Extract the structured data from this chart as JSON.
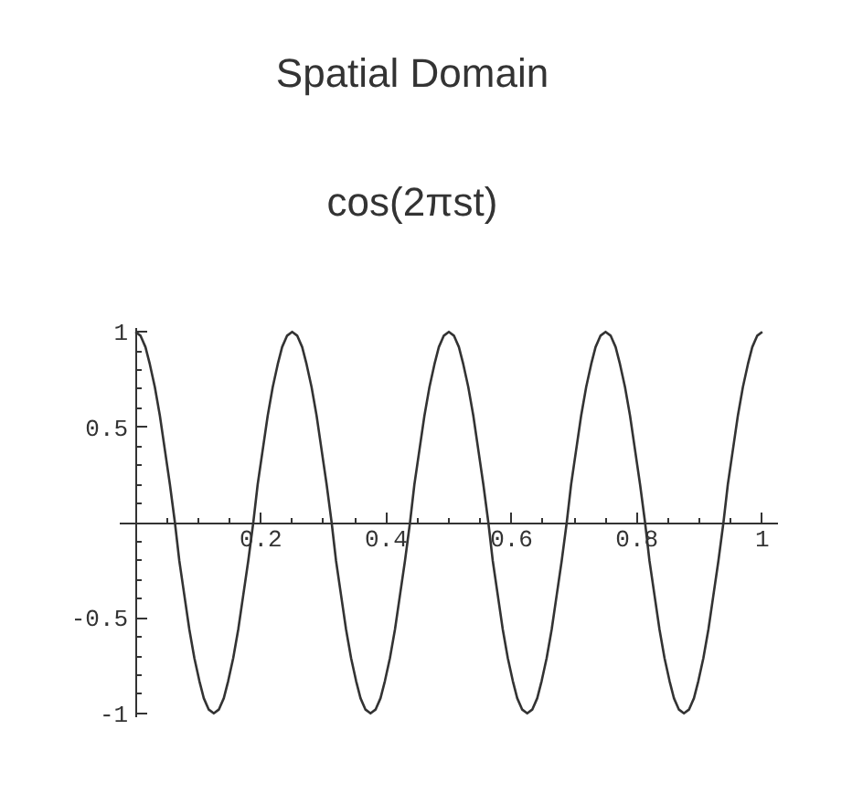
{
  "chart_data": {
    "type": "line",
    "title": "Spatial Domain",
    "subtitle": "cos(2πst)",
    "x": [
      0,
      0.008,
      0.016,
      0.023,
      0.031,
      0.039,
      0.047,
      0.055,
      0.063,
      0.07,
      0.078,
      0.086,
      0.094,
      0.102,
      0.109,
      0.117,
      0.125,
      0.133,
      0.141,
      0.148,
      0.156,
      0.164,
      0.172,
      0.18,
      0.188,
      0.195,
      0.203,
      0.211,
      0.219,
      0.227,
      0.234,
      0.242,
      0.25,
      0.258,
      0.266,
      0.273,
      0.281,
      0.289,
      0.297,
      0.305,
      0.313,
      0.32,
      0.328,
      0.336,
      0.344,
      0.352,
      0.359,
      0.367,
      0.375,
      0.383,
      0.391,
      0.398,
      0.406,
      0.414,
      0.422,
      0.43,
      0.438,
      0.445,
      0.453,
      0.461,
      0.469,
      0.477,
      0.484,
      0.492,
      0.5,
      0.508,
      0.516,
      0.523,
      0.531,
      0.539,
      0.547,
      0.555,
      0.563,
      0.57,
      0.578,
      0.586,
      0.594,
      0.602,
      0.609,
      0.617,
      0.625,
      0.633,
      0.641,
      0.648,
      0.656,
      0.664,
      0.672,
      0.68,
      0.688,
      0.695,
      0.703,
      0.711,
      0.719,
      0.727,
      0.734,
      0.742,
      0.75,
      0.758,
      0.766,
      0.773,
      0.781,
      0.789,
      0.797,
      0.805,
      0.813,
      0.82,
      0.828,
      0.836,
      0.844,
      0.852,
      0.859,
      0.867,
      0.875,
      0.883,
      0.891,
      0.898,
      0.906,
      0.914,
      0.922,
      0.93,
      0.938,
      0.945,
      0.953,
      0.961,
      0.969,
      0.977,
      0.984,
      0.992,
      1
    ],
    "series": [
      {
        "color": "#333333",
        "values": [
          1,
          0.98,
          0.92,
          0.83,
          0.71,
          0.56,
          0.38,
          0.2,
          0,
          -0.2,
          -0.38,
          -0.56,
          -0.71,
          -0.83,
          -0.92,
          -0.98,
          -1,
          -0.98,
          -0.92,
          -0.83,
          -0.71,
          -0.56,
          -0.38,
          -0.2,
          0,
          0.2,
          0.38,
          0.56,
          0.71,
          0.83,
          0.92,
          0.98,
          1,
          0.98,
          0.92,
          0.83,
          0.71,
          0.56,
          0.38,
          0.2,
          0,
          -0.2,
          -0.38,
          -0.56,
          -0.71,
          -0.83,
          -0.92,
          -0.98,
          -1,
          -0.98,
          -0.92,
          -0.83,
          -0.71,
          -0.56,
          -0.38,
          -0.2,
          0,
          0.2,
          0.38,
          0.56,
          0.71,
          0.83,
          0.92,
          0.98,
          1,
          0.98,
          0.92,
          0.83,
          0.71,
          0.56,
          0.38,
          0.2,
          0,
          -0.2,
          -0.38,
          -0.56,
          -0.71,
          -0.83,
          -0.92,
          -0.98,
          -1,
          -0.98,
          -0.92,
          -0.83,
          -0.71,
          -0.56,
          -0.38,
          -0.2,
          0,
          0.2,
          0.38,
          0.56,
          0.71,
          0.83,
          0.92,
          0.98,
          1,
          0.98,
          0.92,
          0.83,
          0.71,
          0.56,
          0.38,
          0.2,
          0,
          -0.2,
          -0.38,
          -0.56,
          -0.71,
          -0.83,
          -0.92,
          -0.98,
          -1,
          -0.98,
          -0.92,
          -0.83,
          -0.71,
          -0.56,
          -0.38,
          -0.2,
          0,
          0.2,
          0.38,
          0.56,
          0.71,
          0.83,
          0.92,
          0.98,
          1
        ]
      }
    ],
    "xlim": [
      -0.025,
      1.025
    ],
    "ylim": [
      -1.02,
      1.02
    ],
    "xticks": [
      {
        "value": 0.05,
        "label": null
      },
      {
        "value": 0.1,
        "label": null
      },
      {
        "value": 0.15,
        "label": null
      },
      0.2,
      {
        "value": 0.25,
        "label": null
      },
      {
        "value": 0.3,
        "label": null
      },
      {
        "value": 0.35,
        "label": null
      },
      0.4,
      {
        "value": 0.45,
        "label": null
      },
      {
        "value": 0.5,
        "label": null
      },
      {
        "value": 0.55,
        "label": null
      },
      0.6,
      {
        "value": 0.65,
        "label": null
      },
      {
        "value": 0.7,
        "label": null
      },
      {
        "value": 0.75,
        "label": null
      },
      0.8,
      {
        "value": 0.85,
        "label": null
      },
      {
        "value": 0.9,
        "label": null
      },
      {
        "value": 0.95,
        "label": null
      },
      1
    ],
    "yticks": [
      -1,
      {
        "value": -0.9,
        "label": null
      },
      {
        "value": -0.8,
        "label": null
      },
      {
        "value": -0.7,
        "label": null
      },
      {
        "value": -0.6,
        "label": null
      },
      -0.5,
      {
        "value": -0.4,
        "label": null
      },
      {
        "value": -0.3,
        "label": null
      },
      {
        "value": -0.2,
        "label": null
      },
      {
        "value": -0.1,
        "label": null
      },
      {
        "value": 0.1,
        "label": null
      },
      {
        "value": 0.2,
        "label": null
      },
      {
        "value": 0.3,
        "label": null
      },
      {
        "value": 0.4,
        "label": null
      },
      0.5,
      {
        "value": 0.6,
        "label": null
      },
      {
        "value": 0.7,
        "label": null
      },
      {
        "value": 0.8,
        "label": null
      },
      {
        "value": 0.9,
        "label": null
      },
      1
    ],
    "grid": false,
    "marker": "none",
    "line_style": "solid"
  }
}
